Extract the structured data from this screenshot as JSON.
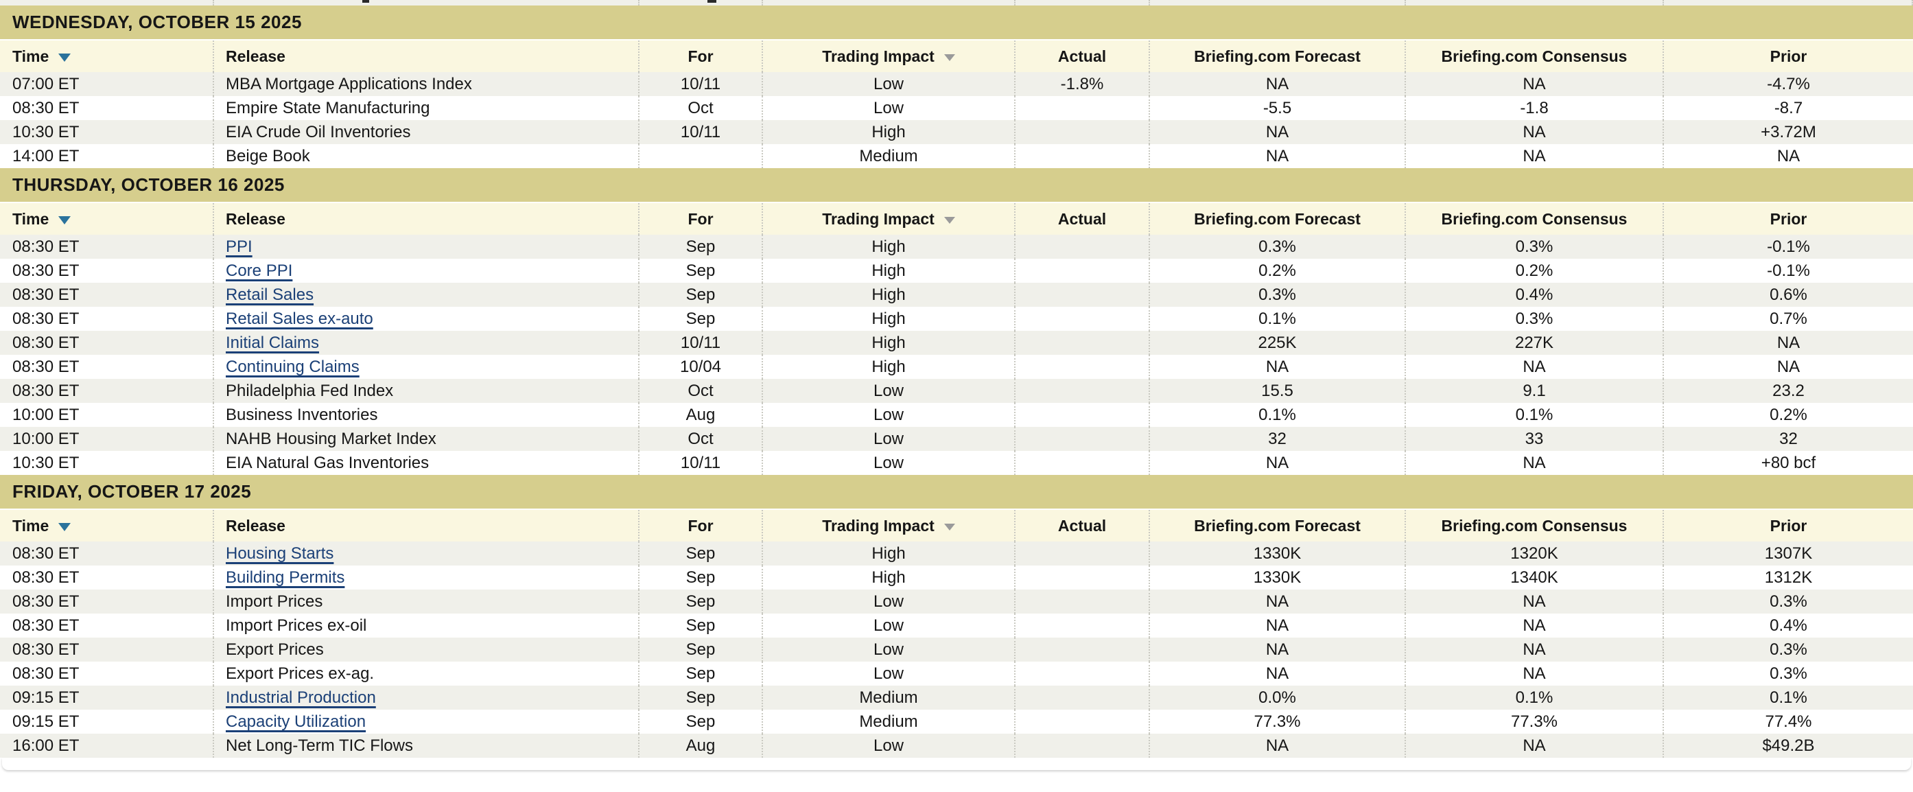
{
  "table": {
    "columns": [
      {
        "label": "Time",
        "align": "left",
        "sortable": true,
        "sort_icon": "sort-desc-icon",
        "sort_icon_color": "#2b739c"
      },
      {
        "label": "Release",
        "align": "left",
        "sortable": false
      },
      {
        "label": "For",
        "align": "center",
        "sortable": false
      },
      {
        "label": "Trading Impact",
        "align": "center",
        "sortable": true,
        "sort_icon": "sort-desc-icon",
        "sort_icon_color": "#9a9a9a"
      },
      {
        "label": "Actual",
        "align": "center",
        "sortable": false
      },
      {
        "label": "Briefing.com Forecast",
        "align": "center",
        "sortable": false
      },
      {
        "label": "Briefing.com Consensus",
        "align": "center",
        "sortable": false
      },
      {
        "label": "Prior",
        "align": "center",
        "sortable": false
      }
    ],
    "sections": [
      {
        "date": "WEDNESDAY, OCTOBER 15 2025",
        "rows": [
          {
            "time": "07:00 ET",
            "release": "MBA Mortgage Applications Index",
            "link": false,
            "for": "10/11",
            "impact": "Low",
            "actual": "-1.8%",
            "forecast": "NA",
            "consensus": "NA",
            "prior": "-4.7%"
          },
          {
            "time": "08:30 ET",
            "release": "Empire State Manufacturing",
            "link": false,
            "for": "Oct",
            "impact": "Low",
            "actual": "",
            "forecast": "-5.5",
            "consensus": "-1.8",
            "prior": "-8.7"
          },
          {
            "time": "10:30 ET",
            "release": "EIA Crude Oil Inventories",
            "link": false,
            "for": "10/11",
            "impact": "High",
            "actual": "",
            "forecast": "NA",
            "consensus": "NA",
            "prior": "+3.72M"
          },
          {
            "time": "14:00 ET",
            "release": "Beige Book",
            "link": false,
            "for": "",
            "impact": "Medium",
            "actual": "",
            "forecast": "NA",
            "consensus": "NA",
            "prior": "NA"
          }
        ]
      },
      {
        "date": "THURSDAY, OCTOBER 16 2025",
        "rows": [
          {
            "time": "08:30 ET",
            "release": "PPI",
            "link": true,
            "for": "Sep",
            "impact": "High",
            "actual": "",
            "forecast": "0.3%",
            "consensus": "0.3%",
            "prior": "-0.1%"
          },
          {
            "time": "08:30 ET",
            "release": "Core PPI",
            "link": true,
            "for": "Sep",
            "impact": "High",
            "actual": "",
            "forecast": "0.2%",
            "consensus": "0.2%",
            "prior": "-0.1%"
          },
          {
            "time": "08:30 ET",
            "release": "Retail Sales",
            "link": true,
            "for": "Sep",
            "impact": "High",
            "actual": "",
            "forecast": "0.3%",
            "consensus": "0.4%",
            "prior": "0.6%"
          },
          {
            "time": "08:30 ET",
            "release": "Retail Sales ex-auto",
            "link": true,
            "for": "Sep",
            "impact": "High",
            "actual": "",
            "forecast": "0.1%",
            "consensus": "0.3%",
            "prior": "0.7%"
          },
          {
            "time": "08:30 ET",
            "release": "Initial Claims",
            "link": true,
            "for": "10/11",
            "impact": "High",
            "actual": "",
            "forecast": "225K",
            "consensus": "227K",
            "prior": "NA"
          },
          {
            "time": "08:30 ET",
            "release": "Continuing Claims",
            "link": true,
            "for": "10/04",
            "impact": "High",
            "actual": "",
            "forecast": "NA",
            "consensus": "NA",
            "prior": "NA"
          },
          {
            "time": "08:30 ET",
            "release": "Philadelphia Fed Index",
            "link": false,
            "for": "Oct",
            "impact": "Low",
            "actual": "",
            "forecast": "15.5",
            "consensus": "9.1",
            "prior": "23.2"
          },
          {
            "time": "10:00 ET",
            "release": "Business Inventories",
            "link": false,
            "for": "Aug",
            "impact": "Low",
            "actual": "",
            "forecast": "0.1%",
            "consensus": "0.1%",
            "prior": "0.2%"
          },
          {
            "time": "10:00 ET",
            "release": "NAHB Housing Market Index",
            "link": false,
            "for": "Oct",
            "impact": "Low",
            "actual": "",
            "forecast": "32",
            "consensus": "33",
            "prior": "32"
          },
          {
            "time": "10:30 ET",
            "release": "EIA Natural Gas Inventories",
            "link": false,
            "for": "10/11",
            "impact": "Low",
            "actual": "",
            "forecast": "NA",
            "consensus": "NA",
            "prior": "+80 bcf"
          }
        ]
      },
      {
        "date": "FRIDAY, OCTOBER 17 2025",
        "rows": [
          {
            "time": "08:30 ET",
            "release": "Housing Starts",
            "link": true,
            "for": "Sep",
            "impact": "High",
            "actual": "",
            "forecast": "1330K",
            "consensus": "1320K",
            "prior": "1307K"
          },
          {
            "time": "08:30 ET",
            "release": "Building Permits",
            "link": true,
            "for": "Sep",
            "impact": "High",
            "actual": "",
            "forecast": "1330K",
            "consensus": "1340K",
            "prior": "1312K"
          },
          {
            "time": "08:30 ET",
            "release": "Import Prices",
            "link": false,
            "for": "Sep",
            "impact": "Low",
            "actual": "",
            "forecast": "NA",
            "consensus": "NA",
            "prior": "0.3%"
          },
          {
            "time": "08:30 ET",
            "release": "Import Prices ex-oil",
            "link": false,
            "for": "Sep",
            "impact": "Low",
            "actual": "",
            "forecast": "NA",
            "consensus": "NA",
            "prior": "0.4%"
          },
          {
            "time": "08:30 ET",
            "release": "Export Prices",
            "link": false,
            "for": "Sep",
            "impact": "Low",
            "actual": "",
            "forecast": "NA",
            "consensus": "NA",
            "prior": "0.3%"
          },
          {
            "time": "08:30 ET",
            "release": "Export Prices ex-ag.",
            "link": false,
            "for": "Sep",
            "impact": "Low",
            "actual": "",
            "forecast": "NA",
            "consensus": "NA",
            "prior": "0.3%"
          },
          {
            "time": "09:15 ET",
            "release": "Industrial Production",
            "link": true,
            "for": "Sep",
            "impact": "Medium",
            "actual": "",
            "forecast": "0.0%",
            "consensus": "0.1%",
            "prior": "0.1%"
          },
          {
            "time": "09:15 ET",
            "release": "Capacity Utilization",
            "link": true,
            "for": "Sep",
            "impact": "Medium",
            "actual": "",
            "forecast": "77.3%",
            "consensus": "77.3%",
            "prior": "77.4%"
          },
          {
            "time": "16:00 ET",
            "release": "Net Long-Term TIC Flows",
            "link": false,
            "for": "Aug",
            "impact": "Low",
            "actual": "",
            "forecast": "NA",
            "consensus": "NA",
            "prior": "$49.2B"
          }
        ]
      }
    ]
  },
  "colors": {
    "page_bg": "#ffffff",
    "day_header_bg": "#d6ce8d",
    "column_header_bg": "#faf7e0",
    "row_alt_bg": "#f0f0ea",
    "row_bg": "#ffffff",
    "text": "#161616",
    "link": "#1b4077",
    "time_sort_arrow": "#2b739c",
    "impact_sort_arrow": "#9a9a9a",
    "separator_dotted": "#c9c9c1"
  }
}
